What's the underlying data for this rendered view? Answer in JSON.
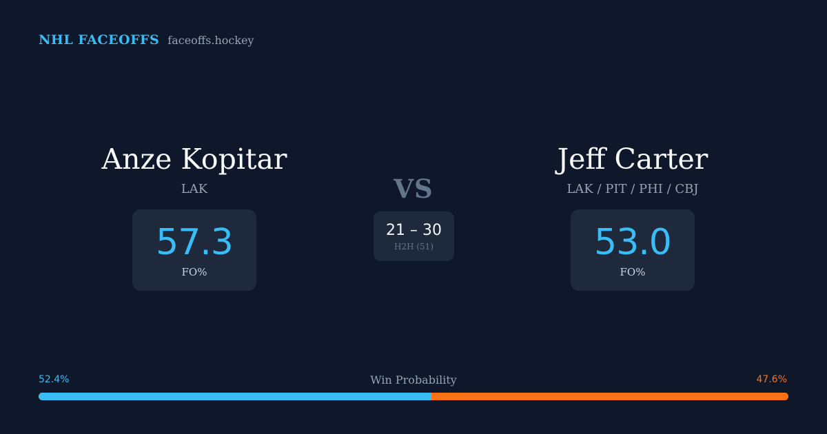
{
  "brand": {
    "title": "NHL FACEOFFS",
    "url": "faceoffs.hockey"
  },
  "left_player": {
    "name": "Anze Kopitar",
    "team": "LAK",
    "stat_value": "57.3",
    "stat_label": "FO%"
  },
  "right_player": {
    "name": "Jeff Carter",
    "team": "LAK / PIT / PHI / CBJ",
    "stat_value": "53.0",
    "stat_label": "FO%"
  },
  "versus": {
    "label": "VS",
    "h2h_score": "21 – 30",
    "h2h_label": "H2H (51)"
  },
  "win_probability": {
    "title": "Win Probability",
    "left_label": "52.4%",
    "right_label": "47.6%",
    "left_fraction": 0.524,
    "right_fraction": 0.476
  },
  "colors": {
    "left": "#38bdf8",
    "right": "#f97316",
    "background": "#0f172a",
    "card": "#1e293b"
  }
}
